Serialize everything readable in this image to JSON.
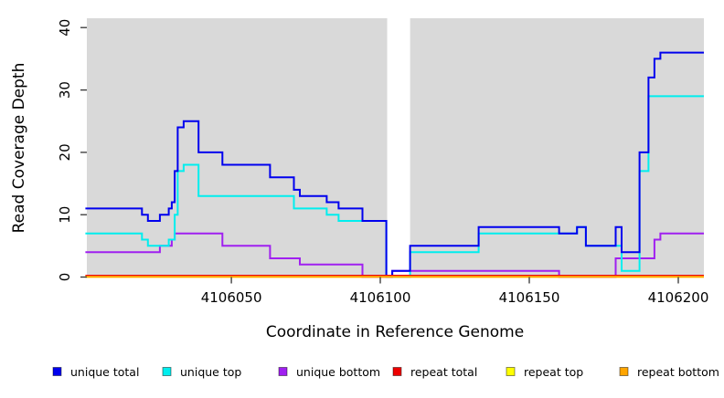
{
  "figure": {
    "background": "#FFFFFF",
    "plot_bg": "#D9D9D9",
    "tick_color": "#333333"
  },
  "chart_data": {
    "type": "line",
    "subtype": "step-after",
    "title": "",
    "xlabel": "Coordinate in Reference Genome",
    "ylabel": "Read Coverage Depth",
    "xlim": [
      4106001.5,
      4106208.6
    ],
    "ylim": [
      0,
      41.5
    ],
    "x_ticks": [
      4106050,
      4106100,
      4106150,
      4106200
    ],
    "y_ticks": [
      0,
      10,
      20,
      30,
      40
    ],
    "grid": false,
    "legend_position": "bottom",
    "gap_band": {
      "x0": 4106102.3,
      "x1": 4106110,
      "color": "#FFFFFF"
    },
    "series": [
      {
        "name": "unique total",
        "color": "#0000EE",
        "points": [
          [
            4106001,
            11
          ],
          [
            4106020,
            10
          ],
          [
            4106022,
            9
          ],
          [
            4106026,
            10
          ],
          [
            4106029,
            11
          ],
          [
            4106030,
            12
          ],
          [
            4106031,
            17
          ],
          [
            4106032,
            24
          ],
          [
            4106034,
            25
          ],
          [
            4106039,
            20
          ],
          [
            4106047,
            18
          ],
          [
            4106063,
            16
          ],
          [
            4106071,
            14
          ],
          [
            4106073,
            13
          ],
          [
            4106082,
            12
          ],
          [
            4106086,
            11
          ],
          [
            4106094,
            9
          ],
          [
            4106102,
            0
          ],
          [
            4106104,
            1
          ],
          [
            4106110,
            5
          ],
          [
            4106133,
            8
          ],
          [
            4106160,
            7
          ],
          [
            4106166,
            8
          ],
          [
            4106169,
            5
          ],
          [
            4106179,
            8
          ],
          [
            4106181,
            4
          ],
          [
            4106187,
            20
          ],
          [
            4106190,
            32
          ],
          [
            4106192,
            35
          ],
          [
            4106194,
            36
          ]
        ]
      },
      {
        "name": "unique top",
        "color": "#00EEEE",
        "points": [
          [
            4106001,
            7
          ],
          [
            4106020,
            6
          ],
          [
            4106022,
            5
          ],
          [
            4106029,
            6
          ],
          [
            4106031,
            10
          ],
          [
            4106032,
            17
          ],
          [
            4106034,
            18
          ],
          [
            4106039,
            13
          ],
          [
            4106071,
            11
          ],
          [
            4106082,
            10
          ],
          [
            4106086,
            9
          ],
          [
            4106102,
            0
          ],
          [
            4106110,
            4
          ],
          [
            4106133,
            7
          ],
          [
            4106166,
            8
          ],
          [
            4106169,
            5
          ],
          [
            4106181,
            1
          ],
          [
            4106187,
            17
          ],
          [
            4106190,
            29
          ]
        ]
      },
      {
        "name": "unique bottom",
        "color": "#A020F0",
        "points": [
          [
            4106001,
            4
          ],
          [
            4106026,
            5
          ],
          [
            4106030,
            6
          ],
          [
            4106031,
            7
          ],
          [
            4106047,
            5
          ],
          [
            4106063,
            3
          ],
          [
            4106073,
            2
          ],
          [
            4106094,
            0
          ],
          [
            4106104,
            1
          ],
          [
            4106160,
            0
          ],
          [
            4106179,
            3
          ],
          [
            4106192,
            6
          ],
          [
            4106194,
            7
          ]
        ]
      },
      {
        "name": "repeat total",
        "color": "#EE0000",
        "points": [
          [
            4106001,
            0
          ]
        ]
      },
      {
        "name": "repeat top",
        "color": "#FFFF00",
        "points": [
          [
            4106001,
            0
          ]
        ]
      },
      {
        "name": "repeat bottom",
        "color": "#FFA500",
        "points": [
          [
            4106001,
            0
          ]
        ]
      }
    ]
  }
}
